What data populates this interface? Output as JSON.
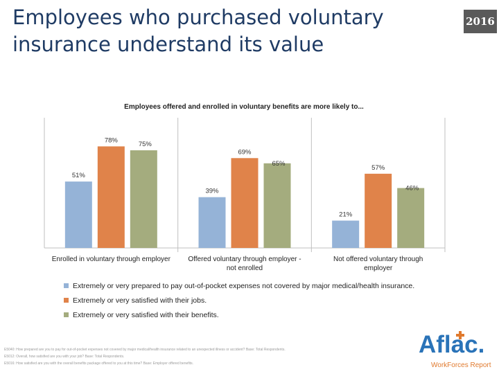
{
  "slide": {
    "title": "Employees who purchased voluntary insurance understand its value",
    "year_badge": "2016"
  },
  "chart_data": {
    "type": "bar",
    "title": "Employees offered and enrolled in voluntary benefits are more likely to...",
    "categories": [
      [
        "Enrolled in voluntary through employer"
      ],
      [
        "Offered voluntary through employer -",
        "not enrolled"
      ],
      [
        "Not offered voluntary through",
        "employer"
      ]
    ],
    "series": [
      {
        "name": "Extremely or very prepared to pay out-of-pocket expenses not covered by major medical/health insurance.",
        "values": [
          51,
          39,
          21
        ],
        "labels": [
          "51%",
          "39%",
          "21%"
        ],
        "color": "#95b3d7"
      },
      {
        "name": "Extremely or very satisfied with their jobs.",
        "values": [
          78,
          69,
          57
        ],
        "labels": [
          "78%",
          "69%",
          "57%"
        ],
        "color": "#e0834a"
      },
      {
        "name": "Extremely or very satisfied with their benefits.",
        "values": [
          75,
          65,
          46
        ],
        "labels": [
          "75%",
          "65%",
          "46%"
        ],
        "color": "#a4ac7e"
      }
    ],
    "ylim": [
      0,
      100
    ],
    "grid": false,
    "legend_position": "bottom"
  },
  "footnotes": [
    "E5040: How prepared are you to pay for out-of-pocket expenses not covered by major medical/health insurance related to an unexpected illness or accident? Base: Total Respondents.",
    "E5012: Overall, how satisfied are you with your job? Base: Total Respondents.",
    "E5016: How satisfied are you with the overall benefits package offered to you at this time? Base: Employer offered benefits."
  ],
  "logo": {
    "word": "Aflac.",
    "subtitle": "WorkForces Report"
  }
}
